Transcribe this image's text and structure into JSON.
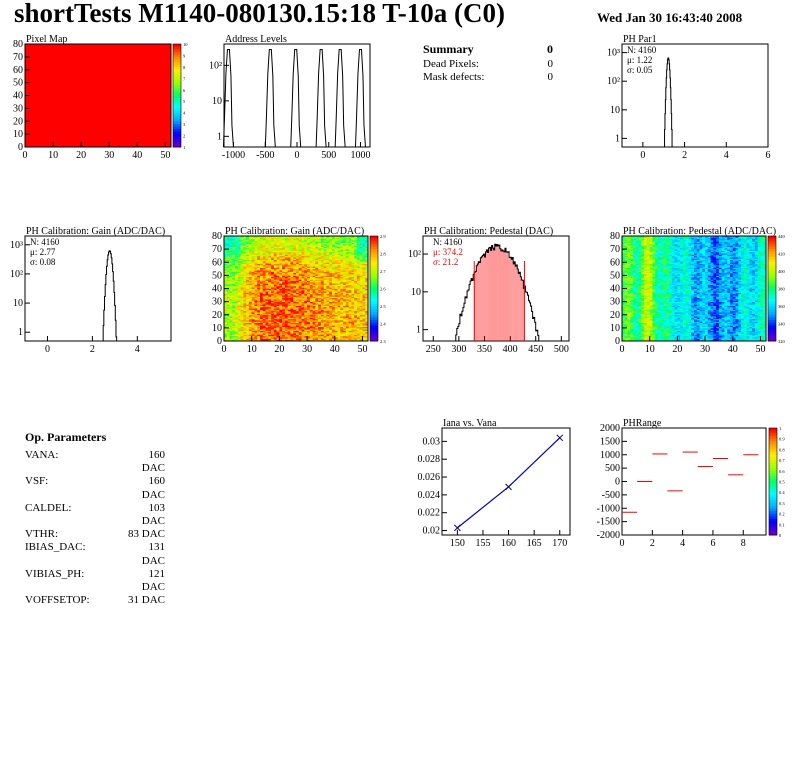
{
  "header": {
    "title": "shortTests M1140-080130.15:18 T-10a (C0)",
    "date": "Wed Jan 30 16:43:40 2008"
  },
  "summary": {
    "title": "Summary",
    "total": "0",
    "rows": [
      {
        "label": "Dead Pixels:",
        "value": "0"
      },
      {
        "label": "Mask defects:",
        "value": "0"
      }
    ]
  },
  "op_params": {
    "title": "Op. Parameters",
    "rows": [
      {
        "label": "VANA:",
        "value": "160 DAC"
      },
      {
        "label": "VSF:",
        "value": "160 DAC"
      },
      {
        "label": "CALDEL:",
        "value": "103 DAC"
      },
      {
        "label": "VTHR:",
        "value": "83 DAC"
      },
      {
        "label": "IBIAS_DAC:",
        "value": "131 DAC"
      },
      {
        "label": "VIBIAS_PH:",
        "value": "121 DAC"
      },
      {
        "label": "VOFFSETOP:",
        "value": "31 DAC"
      }
    ]
  },
  "colors": {
    "hist_line": "#000000",
    "red": "#ff0000",
    "fit_blue": "#0000cc",
    "marker_dark": "#000080"
  },
  "chart_data": [
    {
      "type": "heatmap",
      "title": "Pixel Map",
      "xlim": [
        0,
        52
      ],
      "ylim": [
        0,
        80
      ],
      "xticks": [
        "0",
        "10",
        "20",
        "30",
        "40",
        "50"
      ],
      "yticks": [
        "0",
        "10",
        "20",
        "30",
        "40",
        "50",
        "60",
        "70",
        "80"
      ],
      "value_all_pixels": 10,
      "palette_ticks": [
        "1",
        "2",
        "3",
        "4",
        "5",
        "6",
        "7",
        "8",
        "9",
        "10"
      ]
    },
    {
      "type": "line",
      "title": "Address Levels",
      "log_y": true,
      "xlim": [
        -1150,
        1150
      ],
      "ylim": [
        0.5,
        400
      ],
      "xticks": [
        "-1000",
        "-500",
        "0",
        "500",
        "1000"
      ],
      "yticks": [
        "1",
        "10",
        "10²"
      ],
      "peaks_x": [
        -1080,
        -420,
        -20,
        380,
        680,
        1000
      ],
      "peak_height": 280
    },
    {
      "type": "line",
      "title": "PH Par1",
      "log_y": true,
      "xlim": [
        -1,
        6
      ],
      "ylim": [
        0.5,
        2000
      ],
      "xticks": [
        "0",
        "2",
        "4",
        "6"
      ],
      "yticks": [
        "1",
        "10",
        "10²",
        "10³"
      ],
      "stats": [
        "N: 4160",
        "μ: 1.22",
        "σ: 0.05"
      ],
      "mean": 1.22,
      "sigma": 0.05,
      "entries": 4160
    },
    {
      "type": "line",
      "title": "PH Calibration: Gain (ADC/DAC)",
      "log_y": true,
      "xlim": [
        -1,
        5.5
      ],
      "ylim": [
        0.5,
        2000
      ],
      "xticks": [
        "0",
        "2",
        "4"
      ],
      "yticks": [
        "1",
        "10",
        "10²",
        "10³"
      ],
      "stats": [
        "N: 4160",
        "μ: 2.77",
        "σ: 0.08"
      ],
      "mean": 2.77,
      "sigma": 0.08,
      "entries": 4160
    },
    {
      "type": "heatmap",
      "title": "PH Calibration: Gain (ADC/DAC)",
      "xlim": [
        0,
        52
      ],
      "ylim": [
        0,
        80
      ],
      "xticks": [
        "0",
        "10",
        "20",
        "30",
        "40",
        "50"
      ],
      "yticks": [
        "0",
        "10",
        "20",
        "30",
        "40",
        "50",
        "60",
        "70",
        "80"
      ],
      "zlim": [
        2.3,
        2.9
      ],
      "palette_ticks": [
        "2.3",
        "2.4",
        "2.5",
        "2.6",
        "2.7",
        "2.8",
        "2.9"
      ]
    },
    {
      "type": "line",
      "title": "PH Calibration: Pedestal (DAC)",
      "log_y": true,
      "xlim": [
        230,
        515
      ],
      "ylim": [
        0.5,
        300
      ],
      "xticks": [
        "250",
        "300",
        "350",
        "400",
        "450",
        "500"
      ],
      "yticks": [
        "1",
        "10",
        "10²"
      ],
      "stats": [
        "N: 4160",
        "μ: 374.2",
        "σ: 21.2"
      ],
      "mean": 374.2,
      "sigma": 21.2,
      "entries": 4160,
      "cut_lines": [
        330,
        428
      ]
    },
    {
      "type": "heatmap",
      "title": "PH Calibration: Pedestal (ADC/DAC)",
      "xlim": [
        0,
        52
      ],
      "ylim": [
        0,
        80
      ],
      "xticks": [
        "0",
        "10",
        "20",
        "30",
        "40",
        "50"
      ],
      "yticks": [
        "0",
        "10",
        "20",
        "30",
        "40",
        "50",
        "60",
        "70",
        "80"
      ],
      "zlim": [
        320,
        440
      ],
      "palette_ticks": [
        "320",
        "340",
        "360",
        "380",
        "400",
        "420",
        "440"
      ]
    },
    {
      "type": "scatter",
      "title": "Iana vs. Vana",
      "xlim": [
        147,
        172
      ],
      "ylim": [
        0.0195,
        0.0315
      ],
      "xticks": [
        "150",
        "155",
        "160",
        "165",
        "170"
      ],
      "yticks": [
        "0.02",
        "0.022",
        "0.024",
        "0.026",
        "0.028",
        "0.03"
      ],
      "x": [
        150,
        160,
        170
      ],
      "y": [
        0.0203,
        0.0249,
        0.0304
      ]
    },
    {
      "type": "scatter",
      "title": "PHRange",
      "xlim": [
        0,
        9.5
      ],
      "ylim": [
        -2000,
        2000
      ],
      "xticks": [
        "0",
        "2",
        "4",
        "6",
        "8"
      ],
      "yticks": [
        "-2000",
        "-1500",
        "-1000",
        "-500",
        "0",
        "500",
        "1000",
        "1500",
        "2000"
      ],
      "x_start": [
        0,
        1,
        2,
        3,
        4,
        5,
        6,
        7,
        8
      ],
      "y": [
        -1150,
        0,
        1030,
        -350,
        1100,
        560,
        860,
        250,
        1000
      ],
      "palette_ticks": [
        "0",
        "0.1",
        "0.2",
        "0.3",
        "0.4",
        "0.5",
        "0.6",
        "0.7",
        "0.8",
        "0.9",
        "1"
      ]
    }
  ]
}
